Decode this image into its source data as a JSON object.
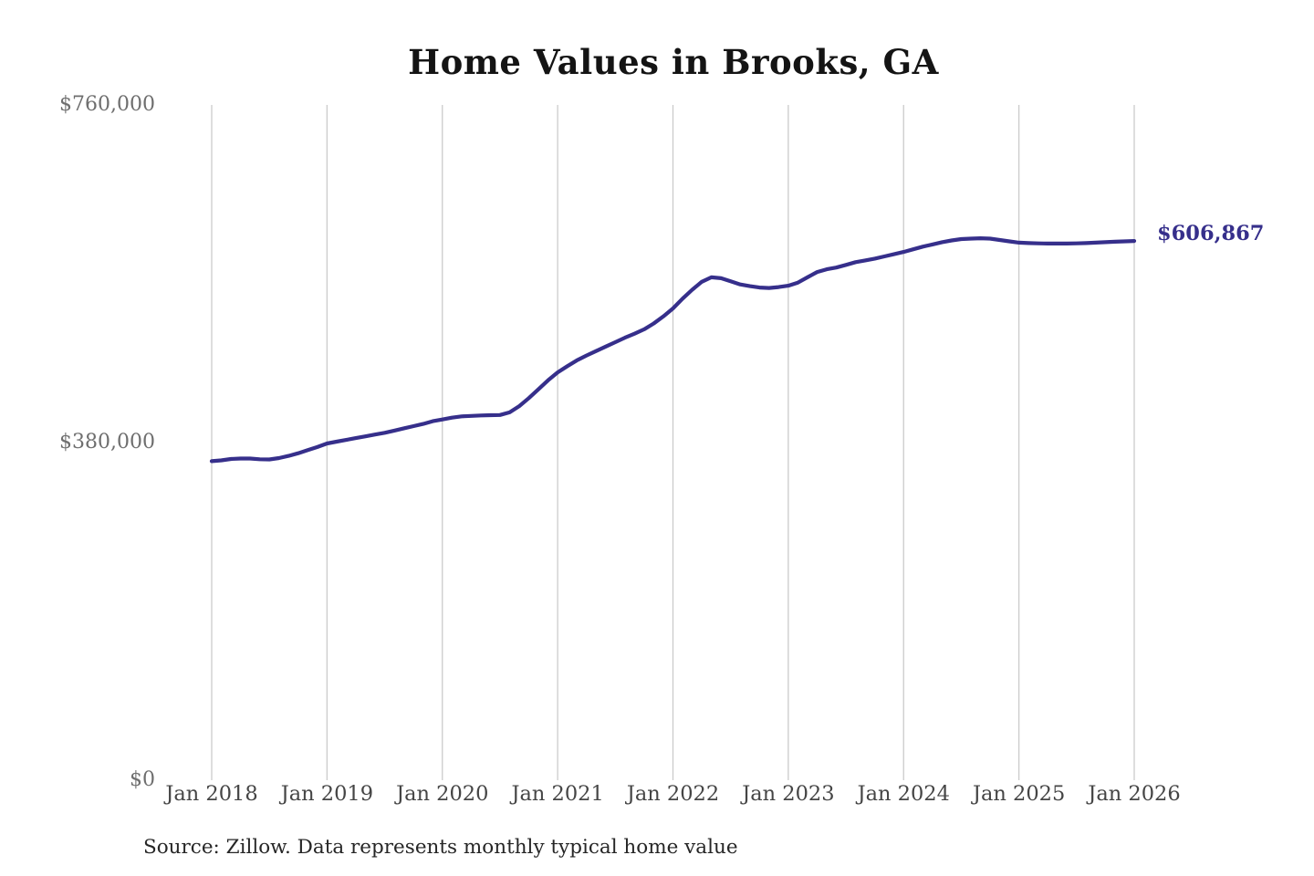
{
  "title": "Home Values in Brooks, GA",
  "end_label": "$606,867",
  "source_note": "Source: Zillow. Data represents monthly typical home value",
  "colors": {
    "line": "#362f8b",
    "grid": "#cbcbcb",
    "title": "#141414",
    "x_tick": "#454545",
    "y_tick": "#6e6e6e",
    "source": "#262626",
    "background": "#ffffff"
  },
  "chart_data": {
    "type": "line",
    "title": "Home Values in Brooks, GA",
    "xlabel": "",
    "ylabel": "",
    "x_unit": "month",
    "x_start": "2018-01",
    "x_end": "2026-01",
    "x_ticks": [
      "Jan 2018",
      "Jan 2019",
      "Jan 2020",
      "Jan 2021",
      "Jan 2022",
      "Jan 2023",
      "Jan 2024",
      "Jan 2025",
      "Jan 2026"
    ],
    "y_ticks": [
      {
        "label": "$0",
        "value": 0
      },
      {
        "label": "$380,000",
        "value": 380000
      },
      {
        "label": "$760,000",
        "value": 760000
      }
    ],
    "ylim": [
      0,
      760000
    ],
    "grid": "vertical-only",
    "legend": "none",
    "end_annotation": "$606,867",
    "series": [
      {
        "name": "Monthly typical home value",
        "final_value": 606867,
        "values": [
          359000,
          360000,
          361500,
          362000,
          362000,
          361200,
          361000,
          362500,
          365000,
          368000,
          371500,
          375000,
          379000,
          381000,
          383000,
          385000,
          387000,
          389000,
          391000,
          393500,
          396000,
          398500,
          401000,
          404000,
          406000,
          408000,
          409500,
          410000,
          410500,
          410800,
          411000,
          414000,
          421000,
          430000,
          440000,
          450000,
          459000,
          466000,
          472500,
          478000,
          483000,
          488000,
          493000,
          498000,
          502500,
          507500,
          514000,
          522000,
          531000,
          542000,
          552000,
          561000,
          566000,
          565000,
          561500,
          558000,
          556000,
          554500,
          554000,
          555000,
          556500,
          560000,
          566000,
          572000,
          575000,
          577000,
          580000,
          583000,
          585000,
          587000,
          589500,
          592000,
          594500,
          597500,
          600500,
          603000,
          605500,
          607500,
          609000,
          609500,
          610000,
          609500,
          608000,
          606500,
          605000,
          604500,
          604200,
          604000,
          604000,
          604000,
          604200,
          604500,
          605000,
          605500,
          606000,
          606500,
          606867
        ]
      }
    ]
  }
}
